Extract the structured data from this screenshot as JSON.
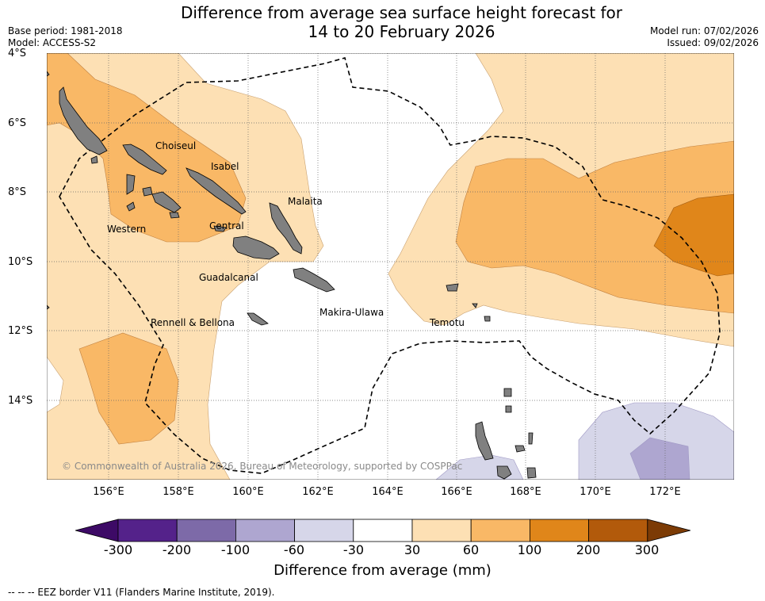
{
  "title_line1": "Difference from average sea surface height forecast for",
  "title_line2": "14 to 20 February 2026",
  "meta": {
    "base_period": "Base period: 1981-2018",
    "model": "Model: ACCESS-S2",
    "model_run": "Model run: 07/02/2026",
    "issued": "Issued: 09/02/2026"
  },
  "lat_labels": [
    "4°S",
    "6°S",
    "8°S",
    "10°S",
    "12°S",
    "14°S"
  ],
  "lon_labels": [
    "156°E",
    "158°E",
    "160°E",
    "162°E",
    "164°E",
    "166°E",
    "168°E",
    "170°E",
    "172°E"
  ],
  "place_labels": {
    "choiseul": "Choiseul",
    "isabel": "Isabel",
    "malaita": "Malaita",
    "western": "Western",
    "central": "Central",
    "guadalcanal": "Guadalcanal",
    "makira": "Makira-Ulawa",
    "rennell": "Rennell & Bellona",
    "temotu": "Temotu"
  },
  "copyright": "© Commonwealth of Australia 2026, Bureau of Meteorology, supported by COSPPac",
  "colorbar": {
    "ticks": [
      "-300",
      "-200",
      "-100",
      "-60",
      "-30",
      "30",
      "60",
      "100",
      "200",
      "300"
    ],
    "colors": [
      "#3d0a66",
      "#54228a",
      "#7d6aa8",
      "#aea6d0",
      "#d6d6e9",
      "#ffffff",
      "#fde0b4",
      "#f9b866",
      "#e0861a",
      "#b25a0b",
      "#7c3b05"
    ],
    "label": "Difference from average (mm)"
  },
  "footnote": "--  --  -- EEZ border V11 (Flanders Marine Institute, 2019)."
}
